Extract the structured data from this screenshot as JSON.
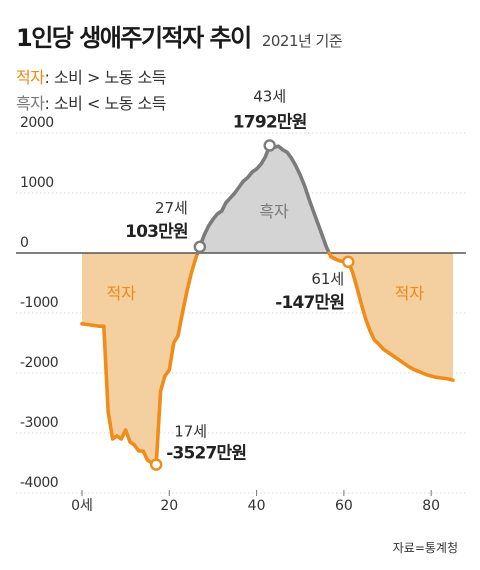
{
  "header": {
    "title": "1인당 생애주기적자 추이",
    "subtitle": "2021년 기준"
  },
  "legend": [
    {
      "key": "적자",
      "sep": ": ",
      "desc": "소비 > 노동 소득",
      "color": "#ef8a17"
    },
    {
      "key": "흑자",
      "sep": ": ",
      "desc": "소비 < 노동 소득",
      "color": "#7a7a7a"
    }
  ],
  "source": "자료=통계청",
  "chart_data": {
    "type": "line",
    "x_ticks": [
      0,
      20,
      40,
      60,
      80
    ],
    "x_tick_labels": [
      "0세",
      "20",
      "40",
      "60",
      "80"
    ],
    "y_ticks": [
      2000,
      1000,
      0,
      -1000,
      -2000,
      -3000,
      -4000
    ],
    "y_tick_labels": [
      "2000",
      "1000",
      "0",
      "-1000",
      "-2000",
      "-3000",
      "-4000"
    ],
    "xlim": [
      0,
      85
    ],
    "ylim": [
      -4000,
      2000
    ],
    "units": "만원",
    "colors": {
      "deficit": "#f08c1a",
      "surplus": "#7b7b7b",
      "deficit_fill": "#f4cfa0",
      "surplus_fill": "#d4d4d4"
    },
    "x": [
      0,
      1,
      2,
      3,
      4,
      5,
      6,
      7,
      8,
      9,
      10,
      11,
      12,
      13,
      14,
      15,
      16,
      17,
      18,
      19,
      20,
      21,
      22,
      23,
      24,
      25,
      26,
      27,
      28,
      29,
      30,
      31,
      32,
      33,
      34,
      35,
      36,
      37,
      38,
      39,
      40,
      41,
      42,
      43,
      44,
      45,
      46,
      47,
      48,
      49,
      50,
      51,
      52,
      53,
      54,
      55,
      56,
      57,
      58,
      59,
      60,
      61,
      62,
      63,
      64,
      65,
      66,
      67,
      68,
      69,
      70,
      71,
      72,
      73,
      74,
      75,
      76,
      77,
      78,
      79,
      80,
      81,
      82,
      83,
      84,
      85
    ],
    "values": [
      -1180,
      -1190,
      -1200,
      -1210,
      -1220,
      -1220,
      -2650,
      -3100,
      -3050,
      -3100,
      -2950,
      -3150,
      -3200,
      -3300,
      -3300,
      -3450,
      -3500,
      -3527,
      -2300,
      -2050,
      -1950,
      -1500,
      -1380,
      -1000,
      -650,
      -350,
      -100,
      103,
      300,
      450,
      560,
      650,
      700,
      840,
      920,
      1000,
      1100,
      1200,
      1260,
      1350,
      1400,
      1480,
      1600,
      1792,
      1760,
      1780,
      1720,
      1680,
      1580,
      1450,
      1300,
      1120,
      900,
      700,
      500,
      300,
      100,
      -60,
      -100,
      -130,
      -140,
      -147,
      -320,
      -580,
      -850,
      -1100,
      -1300,
      -1450,
      -1520,
      -1600,
      -1650,
      -1700,
      -1750,
      -1800,
      -1850,
      -1900,
      -1940,
      -1970,
      -2000,
      -2030,
      -2050,
      -2070,
      -2080,
      -2090,
      -2100,
      -2120
    ],
    "regions": [
      {
        "label": "적자",
        "x": 9
      },
      {
        "label": "흑자",
        "x": 44
      },
      {
        "label": "적자",
        "x": 75
      }
    ],
    "annotations": [
      {
        "age_label": "17세",
        "value_label": "-3527만원",
        "x": 17,
        "y": -3527
      },
      {
        "age_label": "27세",
        "value_label": "103만원",
        "x": 27,
        "y": 103
      },
      {
        "age_label": "43세",
        "value_label": "1792만원",
        "x": 43,
        "y": 1792
      },
      {
        "age_label": "61세",
        "value_label": "-147만원",
        "x": 61,
        "y": -147
      }
    ]
  }
}
